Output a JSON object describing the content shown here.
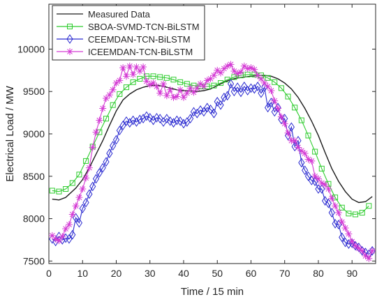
{
  "chart_data": {
    "type": "line",
    "xlabel": "Time / 15 min",
    "ylabel": "Electrical Load / MW",
    "xlim": [
      0,
      97
    ],
    "ylim": [
      7470,
      10530
    ],
    "xticks": [
      0,
      10,
      20,
      30,
      40,
      50,
      60,
      70,
      80,
      90
    ],
    "yticks": [
      7500,
      8000,
      8500,
      9000,
      9500,
      10000
    ],
    "grid": false,
    "legend_position": "top-left",
    "series": [
      {
        "name": "Measured Data",
        "color": "#1a1a1a",
        "marker": "none",
        "points": [
          [
            1,
            8230
          ],
          [
            3,
            8220
          ],
          [
            5,
            8250
          ],
          [
            8,
            8360
          ],
          [
            10,
            8460
          ],
          [
            12,
            8600
          ],
          [
            14,
            8760
          ],
          [
            16,
            8920
          ],
          [
            18,
            9100
          ],
          [
            20,
            9270
          ],
          [
            22,
            9400
          ],
          [
            24,
            9470
          ],
          [
            26,
            9520
          ],
          [
            28,
            9550
          ],
          [
            30,
            9570
          ],
          [
            32,
            9575
          ],
          [
            34,
            9560
          ],
          [
            36,
            9540
          ],
          [
            38,
            9520
          ],
          [
            40,
            9510
          ],
          [
            42,
            9505
          ],
          [
            44,
            9500
          ],
          [
            46,
            9510
          ],
          [
            48,
            9530
          ],
          [
            50,
            9570
          ],
          [
            52,
            9610
          ],
          [
            54,
            9640
          ],
          [
            56,
            9660
          ],
          [
            58,
            9670
          ],
          [
            60,
            9680
          ],
          [
            62,
            9690
          ],
          [
            64,
            9690
          ],
          [
            66,
            9680
          ],
          [
            68,
            9650
          ],
          [
            70,
            9600
          ],
          [
            72,
            9530
          ],
          [
            74,
            9430
          ],
          [
            76,
            9300
          ],
          [
            78,
            9150
          ],
          [
            80,
            8980
          ],
          [
            82,
            8780
          ],
          [
            84,
            8590
          ],
          [
            86,
            8440
          ],
          [
            88,
            8320
          ],
          [
            90,
            8230
          ],
          [
            92,
            8190
          ],
          [
            94,
            8200
          ],
          [
            96,
            8260
          ]
        ]
      },
      {
        "name": "SBOA-SVMD-TCN-BiLSTM",
        "color": "#2ecc2e",
        "marker": "square",
        "points": [
          [
            1,
            8330
          ],
          [
            3,
            8320
          ],
          [
            5,
            8350
          ],
          [
            7,
            8420
          ],
          [
            9,
            8520
          ],
          [
            11,
            8680
          ],
          [
            13,
            8850
          ],
          [
            15,
            9020
          ],
          [
            17,
            9180
          ],
          [
            19,
            9340
          ],
          [
            21,
            9470
          ],
          [
            23,
            9550
          ],
          [
            25,
            9610
          ],
          [
            27,
            9650
          ],
          [
            29,
            9680
          ],
          [
            31,
            9680
          ],
          [
            33,
            9670
          ],
          [
            35,
            9660
          ],
          [
            37,
            9640
          ],
          [
            39,
            9610
          ],
          [
            41,
            9590
          ],
          [
            43,
            9570
          ],
          [
            45,
            9560
          ],
          [
            47,
            9560
          ],
          [
            49,
            9570
          ],
          [
            51,
            9600
          ],
          [
            53,
            9640
          ],
          [
            55,
            9670
          ],
          [
            57,
            9690
          ],
          [
            59,
            9700
          ],
          [
            61,
            9700
          ],
          [
            63,
            9690
          ],
          [
            65,
            9660
          ],
          [
            67,
            9610
          ],
          [
            69,
            9540
          ],
          [
            71,
            9440
          ],
          [
            73,
            9310
          ],
          [
            75,
            9160
          ],
          [
            77,
            8980
          ],
          [
            79,
            8790
          ],
          [
            81,
            8590
          ],
          [
            83,
            8410
          ],
          [
            85,
            8250
          ],
          [
            87,
            8130
          ],
          [
            89,
            8060
          ],
          [
            91,
            8050
          ],
          [
            93,
            8070
          ],
          [
            95,
            8150
          ]
        ]
      },
      {
        "name": "CEEMDAN-TCN-BiLSTM",
        "color": "#2a2ad0",
        "marker": "diamond",
        "points": [
          [
            1,
            7760
          ],
          [
            2,
            7730
          ],
          [
            3,
            7790
          ],
          [
            4,
            7750
          ],
          [
            5,
            7770
          ],
          [
            6,
            7760
          ],
          [
            7,
            7810
          ],
          [
            8,
            8010
          ],
          [
            9,
            7950
          ],
          [
            10,
            8120
          ],
          [
            11,
            8190
          ],
          [
            12,
            8290
          ],
          [
            13,
            8380
          ],
          [
            14,
            8470
          ],
          [
            15,
            8540
          ],
          [
            16,
            8600
          ],
          [
            17,
            8670
          ],
          [
            18,
            8770
          ],
          [
            19,
            8860
          ],
          [
            20,
            8930
          ],
          [
            21,
            9040
          ],
          [
            22,
            9100
          ],
          [
            23,
            9150
          ],
          [
            24,
            9130
          ],
          [
            25,
            9160
          ],
          [
            26,
            9140
          ],
          [
            27,
            9170
          ],
          [
            28,
            9180
          ],
          [
            29,
            9210
          ],
          [
            30,
            9190
          ],
          [
            31,
            9160
          ],
          [
            32,
            9190
          ],
          [
            33,
            9180
          ],
          [
            34,
            9140
          ],
          [
            35,
            9180
          ],
          [
            36,
            9150
          ],
          [
            37,
            9130
          ],
          [
            38,
            9160
          ],
          [
            39,
            9150
          ],
          [
            40,
            9120
          ],
          [
            41,
            9140
          ],
          [
            42,
            9180
          ],
          [
            43,
            9260
          ],
          [
            44,
            9240
          ],
          [
            45,
            9280
          ],
          [
            46,
            9260
          ],
          [
            47,
            9310
          ],
          [
            48,
            9290
          ],
          [
            49,
            9240
          ],
          [
            50,
            9380
          ],
          [
            51,
            9340
          ],
          [
            52,
            9430
          ],
          [
            53,
            9450
          ],
          [
            54,
            9590
          ],
          [
            55,
            9500
          ],
          [
            56,
            9550
          ],
          [
            57,
            9490
          ],
          [
            58,
            9560
          ],
          [
            59,
            9510
          ],
          [
            60,
            9540
          ],
          [
            61,
            9530
          ],
          [
            62,
            9560
          ],
          [
            63,
            9480
          ],
          [
            64,
            9550
          ],
          [
            65,
            9310
          ],
          [
            66,
            9370
          ],
          [
            67,
            9260
          ],
          [
            68,
            9310
          ],
          [
            69,
            9170
          ],
          [
            70,
            9180
          ],
          [
            71,
            8980
          ],
          [
            72,
            9080
          ],
          [
            73,
            8850
          ],
          [
            74,
            8920
          ],
          [
            75,
            8660
          ],
          [
            76,
            8570
          ],
          [
            77,
            8500
          ],
          [
            78,
            8450
          ],
          [
            79,
            8440
          ],
          [
            80,
            8350
          ],
          [
            81,
            8350
          ],
          [
            82,
            8210
          ],
          [
            83,
            8180
          ],
          [
            84,
            8070
          ],
          [
            85,
            7940
          ],
          [
            86,
            7930
          ],
          [
            87,
            7780
          ],
          [
            88,
            7720
          ],
          [
            89,
            7700
          ],
          [
            90,
            7710
          ],
          [
            91,
            7680
          ],
          [
            92,
            7660
          ],
          [
            93,
            7620
          ],
          [
            94,
            7600
          ],
          [
            95,
            7580
          ],
          [
            96,
            7620
          ]
        ]
      },
      {
        "name": "ICEEMDAN-TCN-BiLSTM",
        "color": "#d43ad4",
        "marker": "star",
        "points": [
          [
            1,
            7800
          ],
          [
            2,
            7760
          ],
          [
            3,
            7740
          ],
          [
            4,
            7790
          ],
          [
            5,
            7880
          ],
          [
            6,
            7930
          ],
          [
            7,
            8050
          ],
          [
            8,
            8150
          ],
          [
            9,
            8250
          ],
          [
            10,
            8350
          ],
          [
            11,
            8480
          ],
          [
            12,
            8600
          ],
          [
            13,
            8840
          ],
          [
            14,
            9020
          ],
          [
            15,
            9160
          ],
          [
            16,
            9300
          ],
          [
            17,
            9420
          ],
          [
            18,
            9460
          ],
          [
            19,
            9520
          ],
          [
            20,
            9600
          ],
          [
            21,
            9630
          ],
          [
            22,
            9780
          ],
          [
            23,
            9680
          ],
          [
            24,
            9800
          ],
          [
            25,
            9700
          ],
          [
            26,
            9790
          ],
          [
            27,
            9740
          ],
          [
            28,
            9790
          ],
          [
            29,
            9620
          ],
          [
            30,
            9580
          ],
          [
            31,
            9600
          ],
          [
            32,
            9560
          ],
          [
            33,
            9480
          ],
          [
            34,
            9590
          ],
          [
            35,
            9450
          ],
          [
            36,
            9520
          ],
          [
            37,
            9430
          ],
          [
            38,
            9440
          ],
          [
            39,
            9520
          ],
          [
            40,
            9430
          ],
          [
            41,
            9480
          ],
          [
            42,
            9540
          ],
          [
            43,
            9490
          ],
          [
            44,
            9540
          ],
          [
            45,
            9590
          ],
          [
            46,
            9560
          ],
          [
            47,
            9630
          ],
          [
            48,
            9650
          ],
          [
            49,
            9690
          ],
          [
            50,
            9750
          ],
          [
            51,
            9720
          ],
          [
            52,
            9770
          ],
          [
            53,
            9800
          ],
          [
            54,
            9820
          ],
          [
            55,
            9740
          ],
          [
            56,
            9710
          ],
          [
            57,
            9730
          ],
          [
            58,
            9800
          ],
          [
            59,
            9770
          ],
          [
            60,
            9780
          ],
          [
            61,
            9760
          ],
          [
            62,
            9690
          ],
          [
            63,
            9650
          ],
          [
            64,
            9600
          ],
          [
            65,
            9560
          ],
          [
            66,
            9510
          ],
          [
            67,
            9390
          ],
          [
            68,
            9300
          ],
          [
            69,
            9200
          ],
          [
            70,
            9120
          ],
          [
            71,
            9010
          ],
          [
            72,
            8920
          ],
          [
            73,
            8920
          ],
          [
            74,
            8840
          ],
          [
            75,
            8800
          ],
          [
            76,
            8770
          ],
          [
            77,
            8700
          ],
          [
            78,
            8680
          ],
          [
            79,
            8500
          ],
          [
            80,
            8470
          ],
          [
            81,
            8420
          ],
          [
            82,
            8400
          ],
          [
            83,
            8350
          ],
          [
            84,
            8240
          ],
          [
            85,
            8150
          ],
          [
            86,
            8070
          ],
          [
            87,
            7960
          ],
          [
            88,
            7890
          ],
          [
            89,
            7820
          ],
          [
            90,
            7730
          ],
          [
            91,
            7680
          ],
          [
            92,
            7650
          ],
          [
            93,
            7620
          ],
          [
            94,
            7560
          ],
          [
            95,
            7530
          ],
          [
            96,
            7620
          ]
        ]
      }
    ]
  }
}
